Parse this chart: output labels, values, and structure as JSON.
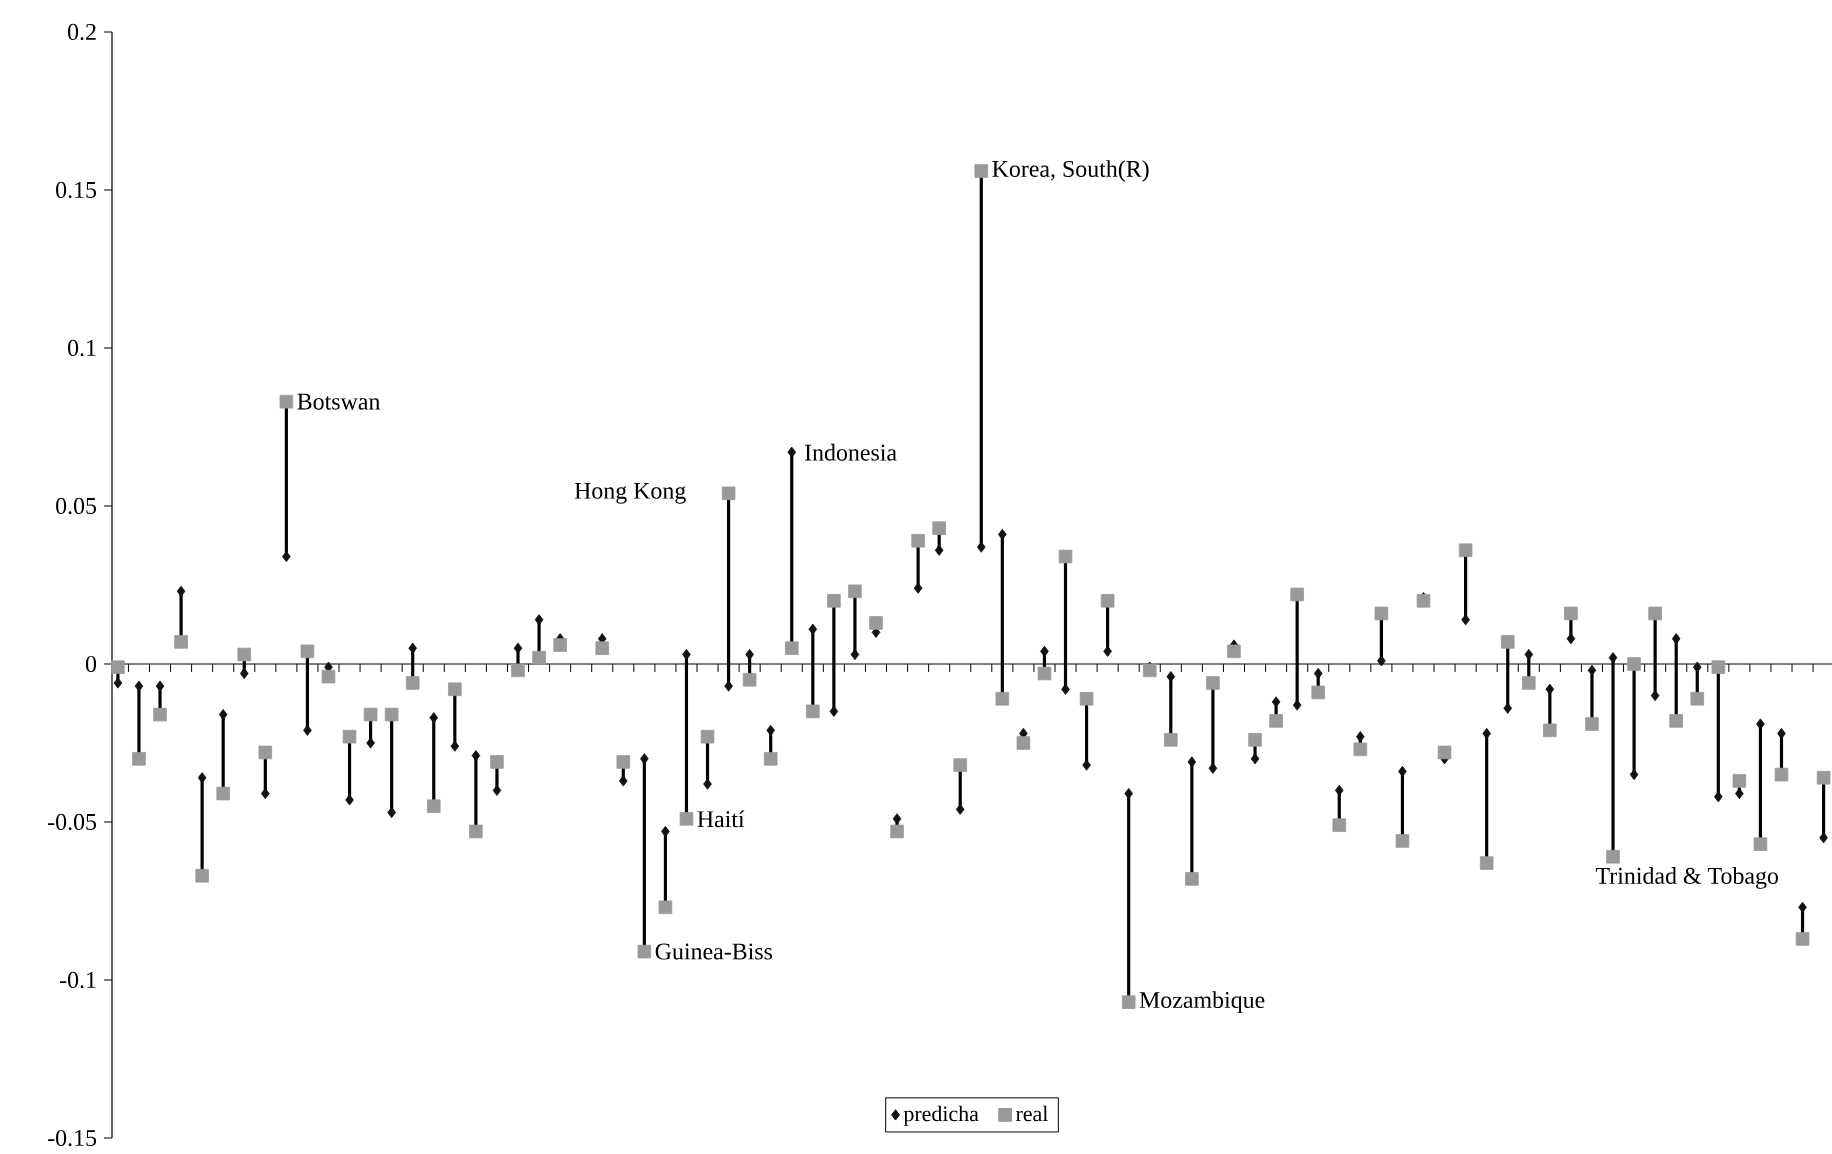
{
  "chart_data": {
    "type": "scatter",
    "categories": [
      null,
      null,
      null,
      null,
      null,
      null,
      null,
      null,
      null,
      null,
      null,
      null,
      null,
      null,
      null,
      null,
      null,
      null,
      null,
      null,
      null,
      null,
      null,
      null,
      null,
      null,
      null,
      null,
      null,
      null,
      null,
      null,
      null,
      null,
      null,
      null,
      null,
      null,
      null,
      null,
      null,
      null,
      null,
      null,
      null,
      null,
      null,
      null,
      null,
      null,
      null,
      null,
      null,
      null,
      null,
      null,
      null,
      null,
      null,
      null,
      null,
      null,
      null,
      null,
      null,
      null,
      null,
      null,
      null,
      null,
      null,
      null,
      null,
      null,
      null,
      null,
      null,
      null,
      null,
      null,
      null,
      null
    ],
    "series": [
      {
        "name": "predicha",
        "color": "#111111",
        "marker": "diamond",
        "values": [
          -0.006,
          -0.007,
          -0.007,
          0.023,
          -0.036,
          -0.016,
          -0.003,
          -0.041,
          0.034,
          -0.021,
          -0.001,
          -0.043,
          -0.025,
          -0.047,
          0.005,
          -0.017,
          -0.026,
          -0.029,
          -0.04,
          0.005,
          0.014,
          0.008,
          null,
          0.008,
          -0.037,
          -0.03,
          -0.053,
          0.003,
          -0.038,
          -0.007,
          0.003,
          -0.021,
          0.067,
          0.011,
          -0.015,
          0.003,
          0.01,
          -0.049,
          0.024,
          0.036,
          -0.046,
          0.037,
          0.041,
          -0.022,
          0.004,
          -0.008,
          -0.032,
          0.004,
          -0.041,
          -0.001,
          -0.004,
          -0.031,
          -0.033,
          0.006,
          -0.03,
          -0.012,
          -0.013,
          -0.003,
          -0.04,
          -0.023,
          0.001,
          -0.034,
          0.021,
          -0.03,
          0.014,
          -0.022,
          -0.014,
          0.003,
          -0.008,
          0.008,
          -0.002,
          0.002,
          -0.035,
          -0.01,
          0.008,
          -0.001,
          -0.042,
          -0.041,
          -0.019,
          -0.022,
          -0.077,
          -0.055
        ]
      },
      {
        "name": "real",
        "color": "#999999",
        "marker": "square",
        "values": [
          -0.001,
          -0.03,
          -0.016,
          0.007,
          -0.067,
          -0.041,
          0.003,
          -0.028,
          0.083,
          0.004,
          -0.004,
          -0.023,
          -0.016,
          -0.016,
          -0.006,
          -0.045,
          -0.008,
          -0.053,
          -0.031,
          -0.002,
          0.002,
          0.006,
          null,
          0.005,
          -0.031,
          -0.091,
          -0.077,
          -0.049,
          -0.023,
          0.054,
          -0.005,
          -0.03,
          0.005,
          -0.015,
          0.02,
          0.023,
          0.013,
          -0.053,
          0.039,
          0.043,
          -0.032,
          0.156,
          -0.011,
          -0.025,
          -0.003,
          0.034,
          -0.011,
          0.02,
          -0.107,
          -0.002,
          -0.024,
          -0.068,
          -0.006,
          0.004,
          -0.024,
          -0.018,
          0.022,
          -0.009,
          -0.051,
          -0.027,
          0.016,
          -0.056,
          0.02,
          -0.028,
          0.036,
          -0.063,
          0.007,
          -0.006,
          -0.021,
          0.016,
          -0.019,
          -0.061,
          0.0,
          0.016,
          -0.018,
          -0.011,
          -0.001,
          -0.037,
          -0.057,
          -0.035,
          -0.087,
          -0.036
        ]
      }
    ],
    "ylim": [
      -0.15,
      0.2
    ],
    "yticks": [
      -0.15,
      -0.1,
      -0.05,
      0,
      0.05,
      0.1,
      0.15,
      0.2
    ],
    "tick_labels": "y",
    "legend": "bottom",
    "annotations": [
      "Botswan",
      "Hong Kong",
      "Indonesia",
      "Haití",
      "Guinea-Biss",
      "Korea, South(R)",
      "Mozambique",
      "Trinidad & Tobago"
    ]
  }
}
